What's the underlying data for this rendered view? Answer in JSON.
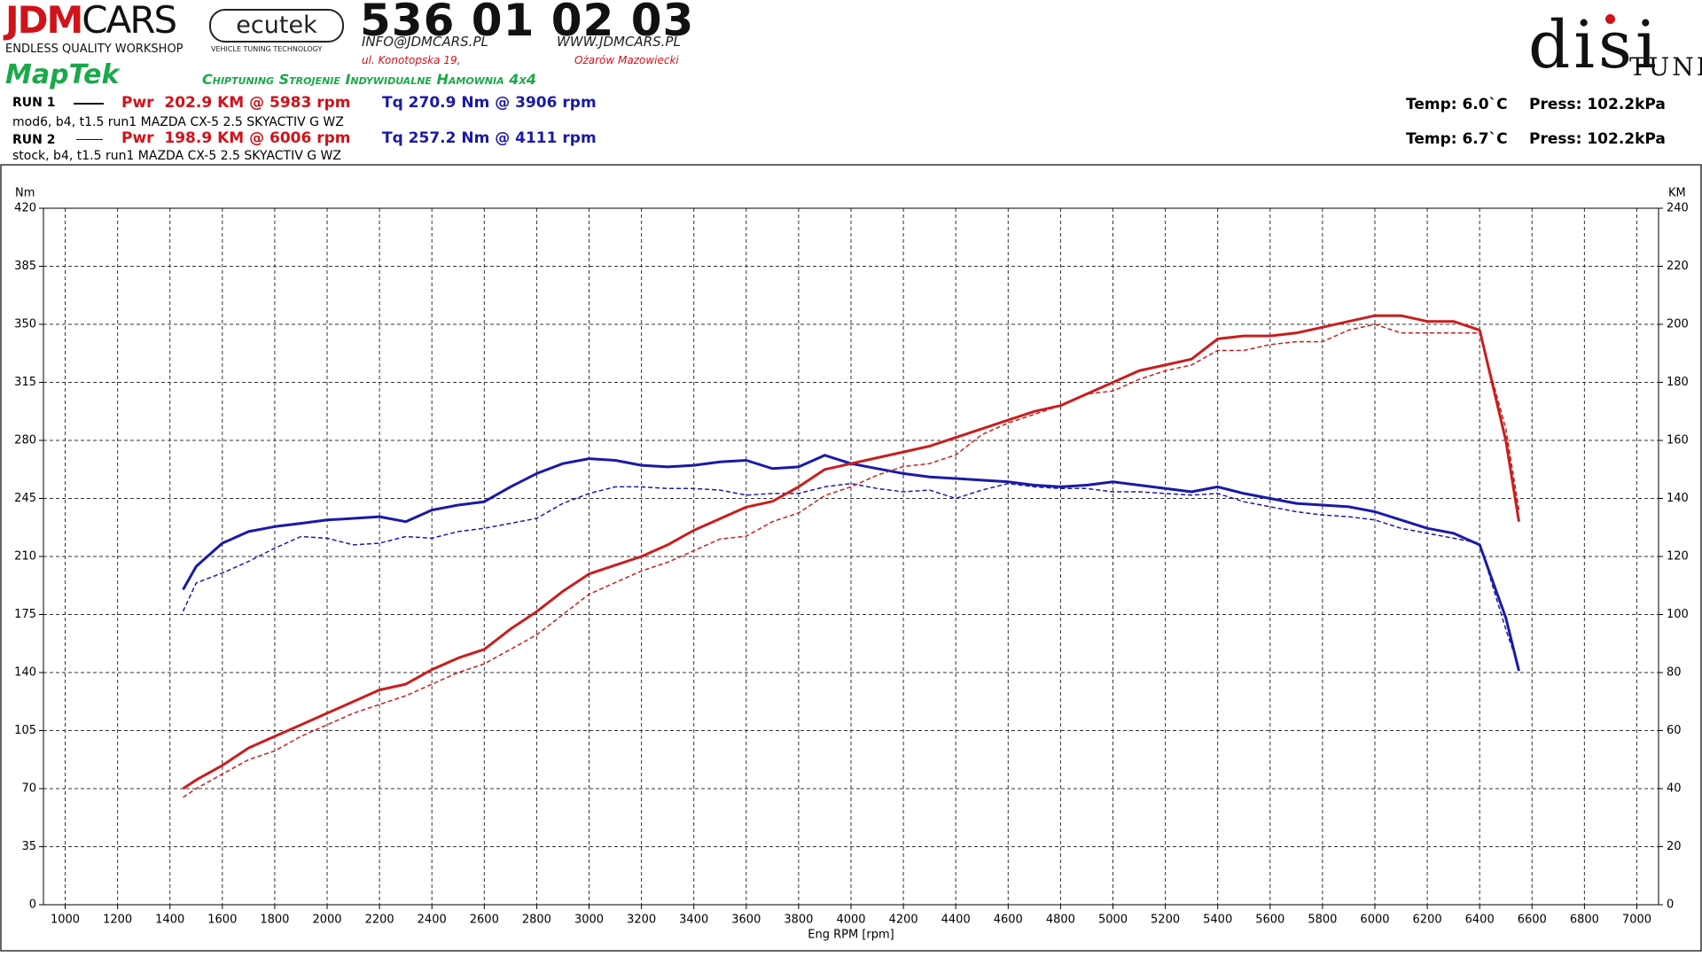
{
  "header": {
    "logo_red": "JDM",
    "logo_black": "CARS",
    "tagline": "ENDLESS QUALITY WORKSHOP",
    "ecutek": "ecutek",
    "ecutek_tagline": "VEHICLE TUNING TECHNOLOGY",
    "phone": "536 01 02 03",
    "email": "INFO@JDMCARS.PL",
    "web": "WWW.JDMCARS.PL",
    "street": "ul. Konotopska 19,",
    "city": "Ożarów Mazowiecki",
    "maptek": "MapTek",
    "services": "Chiptuning Strojenie Indywidualne Hamownia 4x4",
    "disi": "disi",
    "tune": "TUNE"
  },
  "runs": [
    {
      "label": "RUN 1",
      "power": "Pwr  202.9 KM @ 5983 rpm",
      "torque": "Tq 270.9 Nm @ 3906 rpm",
      "note": "mod6, b4, t1.5 run1 MAZDA CX-5 2.5 SKYACTIV G WZ",
      "temp": "Temp: 6.0`C",
      "press": "Press: 102.2kPa"
    },
    {
      "label": "RUN 2",
      "power": "Pwr  198.9 KM @ 6006 rpm",
      "torque": "Tq 257.2 Nm @ 4111 rpm",
      "note": "stock, b4, t1.5 run1 MAZDA CX-5 2.5 SKYACTIV G WZ",
      "temp": "Temp: 6.7`C",
      "press": "Press: 102.2kPa"
    }
  ],
  "chart_data": {
    "type": "line",
    "y_label": "Nm",
    "y2_label": "KM",
    "x_label": "Eng RPM [rpm]",
    "xlim": [
      917,
      7083
    ],
    "xticks": [
      1000,
      1200,
      1400,
      1600,
      1800,
      2000,
      2200,
      2400,
      2600,
      2800,
      3000,
      3200,
      3400,
      3600,
      3800,
      4000,
      4200,
      4400,
      4600,
      4800,
      5000,
      5200,
      5400,
      5600,
      5800,
      6000,
      6200,
      6400,
      6600,
      6800,
      7000
    ],
    "ylim": [
      0,
      420
    ],
    "yticks": [
      0,
      35,
      70,
      105,
      140,
      175,
      210,
      245,
      280,
      315,
      350,
      385,
      420
    ],
    "y2lim": [
      0,
      240
    ],
    "y2ticks": [
      0,
      20,
      40,
      60,
      80,
      100,
      120,
      140,
      160,
      180,
      200,
      220,
      240
    ],
    "grid": true,
    "x": [
      1450,
      1500,
      1600,
      1700,
      1800,
      1900,
      2000,
      2100,
      2200,
      2300,
      2400,
      2500,
      2600,
      2700,
      2800,
      2900,
      3000,
      3100,
      3200,
      3300,
      3400,
      3500,
      3600,
      3700,
      3800,
      3900,
      4000,
      4100,
      4200,
      4300,
      4400,
      4500,
      4600,
      4700,
      4800,
      4900,
      5000,
      5100,
      5200,
      5300,
      5400,
      5500,
      5600,
      5700,
      5800,
      5900,
      6000,
      6100,
      6200,
      6300,
      6400,
      6500,
      6550
    ],
    "series": [
      {
        "color": "#1a1aa6",
        "dashed": false,
        "axis": "y",
        "values": [
          190,
          204,
          218,
          225,
          228,
          230,
          232,
          233,
          234,
          231,
          238,
          241,
          243,
          252,
          260,
          266,
          269,
          268,
          265,
          264,
          265,
          267,
          268,
          263,
          264,
          271,
          266,
          263,
          260,
          258,
          257,
          256,
          255,
          253,
          252,
          253,
          255,
          253,
          251,
          249,
          252,
          248,
          245,
          242,
          241,
          240,
          237,
          232,
          227,
          224,
          217,
          173,
          141
        ]
      },
      {
        "color": "#1a1aa6",
        "dashed": true,
        "axis": "y",
        "values": [
          177,
          194,
          200,
          207,
          215,
          222,
          221,
          217,
          218,
          222,
          221,
          225,
          227,
          230,
          233,
          242,
          248,
          252,
          252,
          251,
          251,
          250,
          247,
          248,
          248,
          252,
          254,
          251,
          249,
          250,
          245,
          250,
          254,
          252,
          251,
          251,
          249,
          249,
          248,
          247,
          248,
          243,
          240,
          237,
          235,
          234,
          232,
          227,
          224,
          221,
          218,
          166,
          143
        ]
      },
      {
        "color": "#c81e1e",
        "dashed": false,
        "axis": "y2",
        "values": [
          40,
          43,
          48,
          54,
          58,
          62,
          66,
          70,
          74,
          76,
          81,
          85,
          88,
          95,
          101,
          108,
          114,
          117,
          120,
          124,
          129,
          133,
          137,
          139,
          144,
          150,
          152,
          154,
          156,
          158,
          161,
          164,
          167,
          170,
          172,
          176,
          180,
          184,
          186,
          188,
          195,
          196,
          196,
          197,
          199,
          201,
          203,
          203,
          201,
          201,
          198,
          160,
          132
        ]
      },
      {
        "color": "#c81e1e",
        "dashed": true,
        "axis": "y2",
        "values": [
          37,
          40,
          45,
          50,
          53,
          58,
          62,
          66,
          69,
          72,
          76,
          80,
          83,
          88,
          93,
          100,
          107,
          111,
          115,
          118,
          122,
          126,
          127,
          132,
          135,
          141,
          144,
          148,
          151,
          152,
          155,
          162,
          166,
          169,
          172,
          176,
          177,
          181,
          184,
          186,
          191,
          191,
          193,
          194,
          194,
          198,
          200,
          197,
          197,
          197,
          197,
          164,
          136
        ]
      }
    ]
  }
}
